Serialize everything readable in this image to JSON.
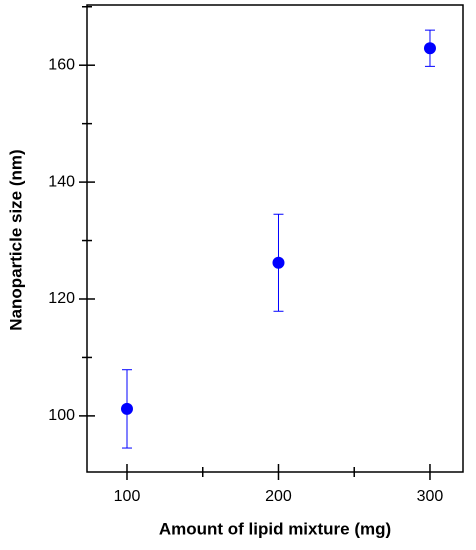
{
  "chart_data": {
    "type": "scatter",
    "xlabel": "Amount of lipid mixture (mg)",
    "ylabel": "Nanoparticle size (nm)",
    "x": [
      100,
      200,
      300
    ],
    "series": [
      {
        "color": "#0000ff",
        "values": [
          101.2,
          126.2,
          162.9
        ],
        "errors": [
          6.7,
          8.3,
          3.1
        ]
      }
    ],
    "xlim": [
      73.6,
      321.8
    ],
    "xticks": [
      100,
      200,
      300
    ],
    "xminorticks": [
      150,
      250
    ],
    "ylim": [
      90.4,
      170.3
    ],
    "yticks": [
      100,
      120,
      140,
      160
    ],
    "yminorticks": [
      110,
      130,
      150,
      170
    ]
  }
}
